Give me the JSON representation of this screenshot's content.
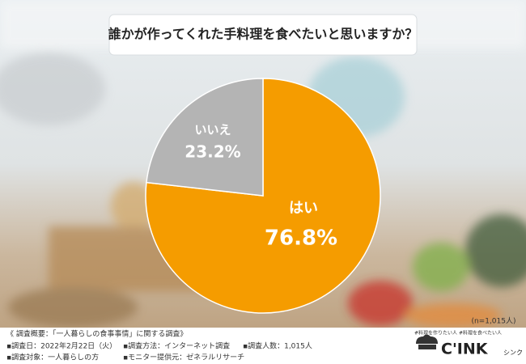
{
  "chart_data": {
    "type": "pie",
    "title": "誰かが作ってくれた手料理を食べたいと思いますか？",
    "categories": [
      "はい",
      "いいえ"
    ],
    "values": [
      76.8,
      23.2
    ],
    "value_labels": [
      "76.8%",
      "23.2%"
    ],
    "colors": [
      "#f59c00",
      "#b4b4b4"
    ],
    "note": "(n=1,015人)"
  },
  "survey": {
    "heading": "《 調査概要：「一人暮らしの食事事情」に関する調査》",
    "items": [
      "▪調査日：2022年2月22日（火）",
      "▪調査方法：インターネット調査",
      "▪調査人数：1,015人",
      "▪調査対象：一人暮らしの方",
      "▪モニター提供元：ゼネラルリサーチ"
    ]
  },
  "logo": {
    "tagline": "#料理を作りたい人 #料理を食べたい人",
    "name": "C'INK",
    "sub": "シンク"
  }
}
